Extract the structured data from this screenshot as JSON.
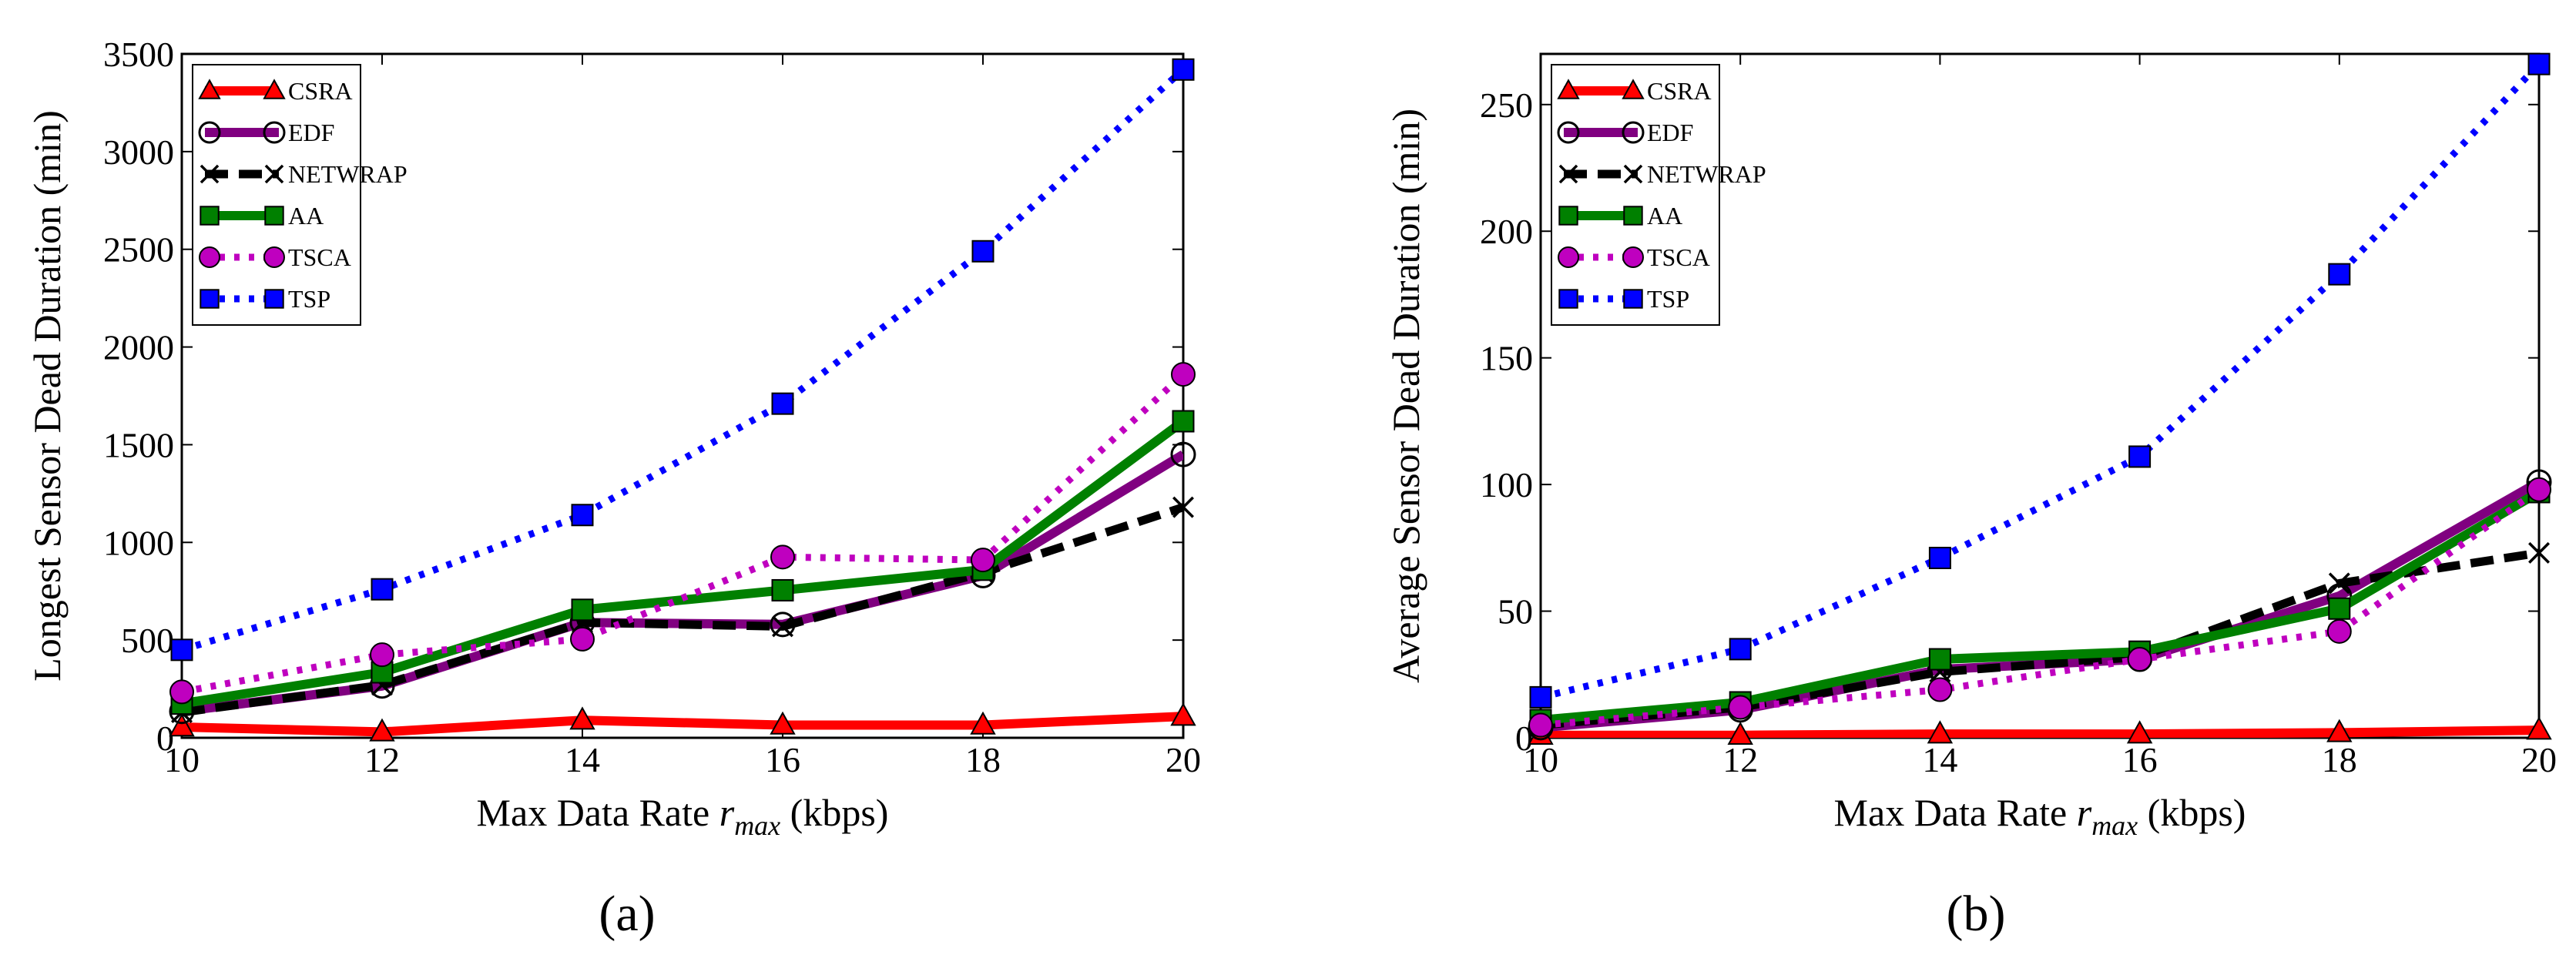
{
  "chart_data": [
    {
      "type": "line",
      "caption": "(a)",
      "xlabel_main": "Max Data Rate ",
      "xlabel_var": "r",
      "xlabel_sub": "max",
      "xlabel_unit": " (kbps)",
      "ylabel": "Longest Sensor Dead Duration (min)",
      "x": [
        10,
        12,
        14,
        16,
        18,
        20
      ],
      "xlim": [
        10,
        20
      ],
      "ylim": [
        0,
        3500
      ],
      "xticks": [
        "10",
        "12",
        "14",
        "16",
        "18",
        "20"
      ],
      "yticks": [
        "0",
        "500",
        "1000",
        "1500",
        "2000",
        "2500",
        "3000",
        "3500"
      ],
      "legend_position": "top-left",
      "series": [
        {
          "name": "CSRA",
          "color": "#ff0000",
          "style": "solid",
          "marker": "triangle",
          "values": [
            55,
            30,
            90,
            65,
            65,
            110
          ]
        },
        {
          "name": "EDF",
          "color": "#800080",
          "style": "solid",
          "marker": "open-circle",
          "values": [
            135,
            265,
            590,
            580,
            830,
            1450
          ]
        },
        {
          "name": "NETWRAP",
          "color": "#000000",
          "style": "dashed",
          "marker": "x",
          "values": [
            130,
            270,
            590,
            570,
            845,
            1180
          ]
        },
        {
          "name": "AA",
          "color": "#008000",
          "style": "solid",
          "marker": "square",
          "values": [
            175,
            335,
            655,
            755,
            860,
            1620
          ]
        },
        {
          "name": "TSCA",
          "color": "#bf00bf",
          "style": "dotted",
          "marker": "circle",
          "values": [
            235,
            425,
            505,
            925,
            910,
            1860
          ]
        },
        {
          "name": "TSP",
          "color": "#0000ff",
          "style": "dotted",
          "marker": "square",
          "values": [
            450,
            760,
            1140,
            1710,
            2490,
            3420
          ]
        }
      ]
    },
    {
      "type": "line",
      "caption": "(b)",
      "xlabel_main": "Max Data Rate ",
      "xlabel_var": "r",
      "xlabel_sub": "max",
      "xlabel_unit": " (kbps)",
      "ylabel": "Average Sensor Dead Duration (min)",
      "x": [
        10,
        12,
        14,
        16,
        18,
        20
      ],
      "xlim": [
        10,
        20
      ],
      "ylim": [
        0,
        270
      ],
      "xticks": [
        "10",
        "12",
        "14",
        "16",
        "18",
        "20"
      ],
      "yticks": [
        "0",
        "50",
        "100",
        "150",
        "200",
        "250"
      ],
      "legend_position": "top-left",
      "series": [
        {
          "name": "CSRA",
          "color": "#ff0000",
          "style": "solid",
          "marker": "triangle",
          "values": [
            1,
            1,
            1.5,
            1.5,
            2,
            3
          ]
        },
        {
          "name": "EDF",
          "color": "#800080",
          "style": "solid",
          "marker": "open-circle",
          "values": [
            4,
            11,
            27,
            31,
            56,
            101
          ]
        },
        {
          "name": "NETWRAP",
          "color": "#000000",
          "style": "dashed",
          "marker": "x",
          "values": [
            5,
            12,
            26,
            32,
            61,
            73
          ]
        },
        {
          "name": "AA",
          "color": "#008000",
          "style": "solid",
          "marker": "square",
          "values": [
            7,
            14,
            31,
            34,
            51,
            97
          ]
        },
        {
          "name": "TSCA",
          "color": "#bf00bf",
          "style": "dotted",
          "marker": "circle",
          "values": [
            5,
            12,
            19,
            31,
            42,
            98
          ]
        },
        {
          "name": "TSP",
          "color": "#0000ff",
          "style": "dotted",
          "marker": "square",
          "values": [
            16,
            35,
            71,
            111,
            183,
            266
          ]
        }
      ]
    }
  ]
}
